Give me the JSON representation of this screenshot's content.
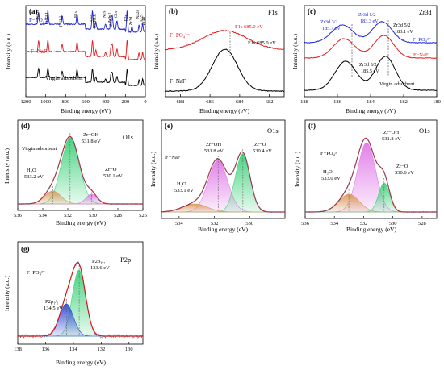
{
  "colors": {
    "black": "#000000",
    "red": "#e8191c",
    "blue": "#1f24d6",
    "envelope": "#d71a1a",
    "green_fill": "#3ed27a",
    "magenta_fill": "#e07be8",
    "orange_fill": "#d99a5a",
    "noise_blue": "#3a6aa8"
  },
  "chart_data": [
    {
      "id": "a",
      "tag": "(a)",
      "type": "line",
      "xlabel": "Binding energy (eV)",
      "ylabel": "Intensity (a.u.)",
      "xlim": [
        1200,
        0
      ],
      "xticks": [
        1200,
        1000,
        800,
        600,
        400,
        200,
        0
      ],
      "series": [
        {
          "name": "F−PO₄³⁻",
          "color": "blue"
        },
        {
          "name": "F−NaF",
          "color": "red"
        },
        {
          "name": "Virgin adsorbent",
          "color": "black"
        }
      ],
      "peak_labels": [
        "Na1s",
        "O KLL",
        "F KLL",
        "F1s",
        "O1s",
        "Na KLL",
        "N1s",
        "Zr3p1",
        "Zr3p3",
        "C1s",
        "P2p",
        "Zr3d",
        "Na2s",
        "O2s",
        "Zr4p"
      ]
    },
    {
      "id": "b",
      "tag": "(b)",
      "title": "F1s",
      "type": "line",
      "xlabel": "Binding energy (eV)",
      "ylabel": "Intensity (a.u.)",
      "xlim": [
        689,
        681
      ],
      "xticks": [
        688,
        686,
        684,
        682
      ],
      "series": [
        {
          "name": "F−PO₄³⁻",
          "color": "red",
          "peak": 685.0,
          "peak_label": "F1s  685.0 eV"
        },
        {
          "name": "F−NaF",
          "color": "black",
          "peak": 685.0,
          "peak_label": "F1s  685.0 eV"
        }
      ]
    },
    {
      "id": "c",
      "tag": "(c)",
      "title": "Zr3d",
      "type": "line",
      "xlabel": "Binding energy (eV)",
      "ylabel": "Intensity (a.u.)",
      "xlim": [
        188,
        180
      ],
      "xticks": [
        188,
        186,
        184,
        182,
        180
      ],
      "series": [
        {
          "name": "F−PO₄³⁻",
          "color": "blue",
          "peaks": [
            185.7,
            183.3
          ]
        },
        {
          "name": "F−NaF",
          "color": "red",
          "peaks": [
            185.6,
            183.2
          ]
        },
        {
          "name": "Virgin adsorbent",
          "color": "black",
          "peaks": [
            185.5,
            183.1
          ]
        }
      ],
      "annotations": [
        {
          "text": "Zr3d 3/2",
          "value": "185.7 eV",
          "color": "blue"
        },
        {
          "text": "Zr3d 5/2",
          "value": "183.3 eV",
          "color": "blue"
        },
        {
          "text": "Zr3d 5/2",
          "value": "183.1 eV",
          "color": "black"
        },
        {
          "text": "Zr3d 3/2",
          "value": "185.5 eV",
          "color": "black"
        }
      ]
    },
    {
      "id": "d",
      "tag": "(d)",
      "title": "O1s",
      "type": "area",
      "sample": "Virgin adsorbent",
      "xlabel": "Binding energy (eV)",
      "ylabel": "Intensity (a.u.)",
      "xlim": [
        536,
        526
      ],
      "xticks": [
        536,
        534,
        532,
        530,
        528,
        526
      ],
      "components": [
        {
          "name": "Zr−OH",
          "value": "531.8 eV",
          "center": 531.8
        },
        {
          "name": "H₂O",
          "value": "533.2 eV",
          "center": 533.2
        },
        {
          "name": "Zr−O",
          "value": "530.1 eV",
          "center": 530.1
        }
      ]
    },
    {
      "id": "e",
      "tag": "(e)",
      "title": "O1s",
      "type": "area",
      "sample": "F−NaF",
      "xlabel": "Binding energy (eV)",
      "ylabel": "Intensity (a.u.)",
      "xlim": [
        535,
        528
      ],
      "xticks": [
        534,
        532,
        530
      ],
      "components": [
        {
          "name": "Zr−OH",
          "value": "531.8 eV",
          "center": 531.8
        },
        {
          "name": "Zr−O",
          "value": "530.4 eV",
          "center": 530.4
        },
        {
          "name": "H₂O",
          "value": "533.1 eV",
          "center": 533.1
        }
      ]
    },
    {
      "id": "f",
      "tag": "(f)",
      "title": "O1s",
      "type": "area",
      "sample": "F−PO₄³⁻",
      "xlabel": "Binding energy (eV)",
      "ylabel": "Intensity (a.u.)",
      "xlim": [
        536,
        527
      ],
      "xticks": [
        536,
        534,
        532,
        530,
        528
      ],
      "components": [
        {
          "name": "Zr−OH",
          "value": "531.8 eV",
          "center": 531.8
        },
        {
          "name": "H₂O",
          "value": "533.0 eV",
          "center": 533.0
        },
        {
          "name": "Zr−O",
          "value": "530.6 eV",
          "center": 530.6
        }
      ]
    },
    {
      "id": "g",
      "tag": "(g)",
      "title": "P2p",
      "type": "area",
      "sample": "F−PO₄³⁻",
      "xlabel": "Binding energy (eV)",
      "ylabel": "Intensity (a.u.)",
      "xlim": [
        138,
        129
      ],
      "xticks": [
        138,
        136,
        134,
        132,
        130
      ],
      "components": [
        {
          "name": "P2p₃/₂",
          "value": "133.6 eV",
          "center": 133.6
        },
        {
          "name": "P2p₁/₂",
          "value": "134.5 eV",
          "center": 134.5
        }
      ]
    }
  ]
}
